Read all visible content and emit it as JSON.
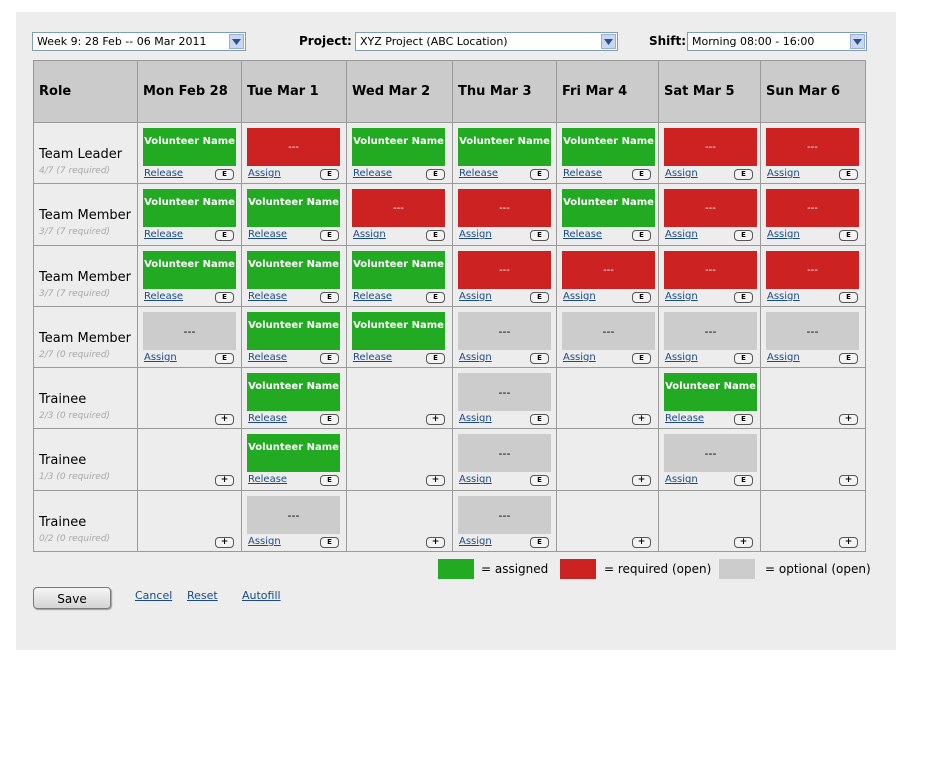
{
  "toolbar": {
    "week_value": "Week 9:  28 Feb -- 06 Mar 2011",
    "project_label": "Project:",
    "project_value": "XYZ Project (ABC Location)",
    "shift_label": "Shift:",
    "shift_value": "Morning 08:00 - 16:00"
  },
  "table": {
    "role_header": "Role",
    "days": [
      "Mon Feb 28",
      "Tue Mar 1",
      "Wed Mar 2",
      "Thu Mar 3",
      "Fri Mar 4",
      "Sat Mar 5",
      "Sun Mar 6"
    ],
    "rows": [
      {
        "role": "Team Leader",
        "req": "4/7 (7 required)",
        "cells": [
          {
            "state": "assigned",
            "text": "Volunteer Name",
            "action": "Release"
          },
          {
            "state": "required",
            "text": "---",
            "action": "Assign"
          },
          {
            "state": "assigned",
            "text": "Volunteer Name",
            "action": "Release"
          },
          {
            "state": "assigned",
            "text": "Volunteer Name",
            "action": "Release"
          },
          {
            "state": "assigned",
            "text": "Volunteer Name",
            "action": "Release"
          },
          {
            "state": "required",
            "text": "---",
            "action": "Assign"
          },
          {
            "state": "required",
            "text": "---",
            "action": "Assign"
          }
        ]
      },
      {
        "role": "Team Member",
        "req": "3/7 (7 required)",
        "cells": [
          {
            "state": "assigned",
            "text": "Volunteer Name",
            "action": "Release"
          },
          {
            "state": "assigned",
            "text": "Volunteer Name",
            "action": "Release"
          },
          {
            "state": "required",
            "text": "---",
            "action": "Assign"
          },
          {
            "state": "required",
            "text": "---",
            "action": "Assign"
          },
          {
            "state": "assigned",
            "text": "Volunteer Name",
            "action": "Release"
          },
          {
            "state": "required",
            "text": "---",
            "action": "Assign"
          },
          {
            "state": "required",
            "text": "---",
            "action": "Assign"
          }
        ]
      },
      {
        "role": "Team Member",
        "req": "3/7 (7 required)",
        "cells": [
          {
            "state": "assigned",
            "text": "Volunteer Name",
            "action": "Release"
          },
          {
            "state": "assigned",
            "text": "Volunteer Name",
            "action": "Release"
          },
          {
            "state": "assigned",
            "text": "Volunteer Name",
            "action": "Release"
          },
          {
            "state": "required",
            "text": "---",
            "action": "Assign"
          },
          {
            "state": "required",
            "text": "---",
            "action": "Assign"
          },
          {
            "state": "required",
            "text": "---",
            "action": "Assign"
          },
          {
            "state": "required",
            "text": "---",
            "action": "Assign"
          }
        ]
      },
      {
        "role": "Team Member",
        "req": "2/7 (0 required)",
        "cells": [
          {
            "state": "optional",
            "text": "---",
            "action": "Assign"
          },
          {
            "state": "assigned",
            "text": "Volunteer Name",
            "action": "Release"
          },
          {
            "state": "assigned",
            "text": "Volunteer Name",
            "action": "Release"
          },
          {
            "state": "optional",
            "text": "---",
            "action": "Assign"
          },
          {
            "state": "optional",
            "text": "---",
            "action": "Assign"
          },
          {
            "state": "optional",
            "text": "---",
            "action": "Assign"
          },
          {
            "state": "optional",
            "text": "---",
            "action": "Assign"
          }
        ]
      },
      {
        "role": "Trainee",
        "req": "2/3 (0 required)",
        "cells": [
          {
            "state": "empty"
          },
          {
            "state": "assigned",
            "text": "Volunteer Name",
            "action": "Release"
          },
          {
            "state": "empty"
          },
          {
            "state": "optional",
            "text": "---",
            "action": "Assign"
          },
          {
            "state": "empty"
          },
          {
            "state": "assigned",
            "text": "Volunteer Name",
            "action": "Release"
          },
          {
            "state": "empty"
          }
        ]
      },
      {
        "role": "Trainee",
        "req": "1/3 (0 required)",
        "cells": [
          {
            "state": "empty"
          },
          {
            "state": "assigned",
            "text": "Volunteer Name",
            "action": "Release"
          },
          {
            "state": "empty"
          },
          {
            "state": "optional",
            "text": "---",
            "action": "Assign"
          },
          {
            "state": "empty"
          },
          {
            "state": "optional",
            "text": "---",
            "action": "Assign"
          },
          {
            "state": "empty"
          }
        ]
      },
      {
        "role": "Trainee",
        "req": "0/2 (0 required)",
        "cells": [
          {
            "state": "empty"
          },
          {
            "state": "optional",
            "text": "---",
            "action": "Assign"
          },
          {
            "state": "empty"
          },
          {
            "state": "optional",
            "text": "---",
            "action": "Assign"
          },
          {
            "state": "empty"
          },
          {
            "state": "empty"
          },
          {
            "state": "empty"
          }
        ]
      }
    ],
    "edit_label": "E",
    "add_label": "+"
  },
  "legend": {
    "assigned": "= assigned",
    "required": "= required (open)",
    "optional": "= optional (open)"
  },
  "footer": {
    "save": "Save",
    "cancel": "Cancel",
    "reset": "Reset",
    "autofill": "Autofill"
  },
  "colors": {
    "assigned": "#22aa22",
    "required": "#cc2222",
    "optional": "#cccccc"
  }
}
